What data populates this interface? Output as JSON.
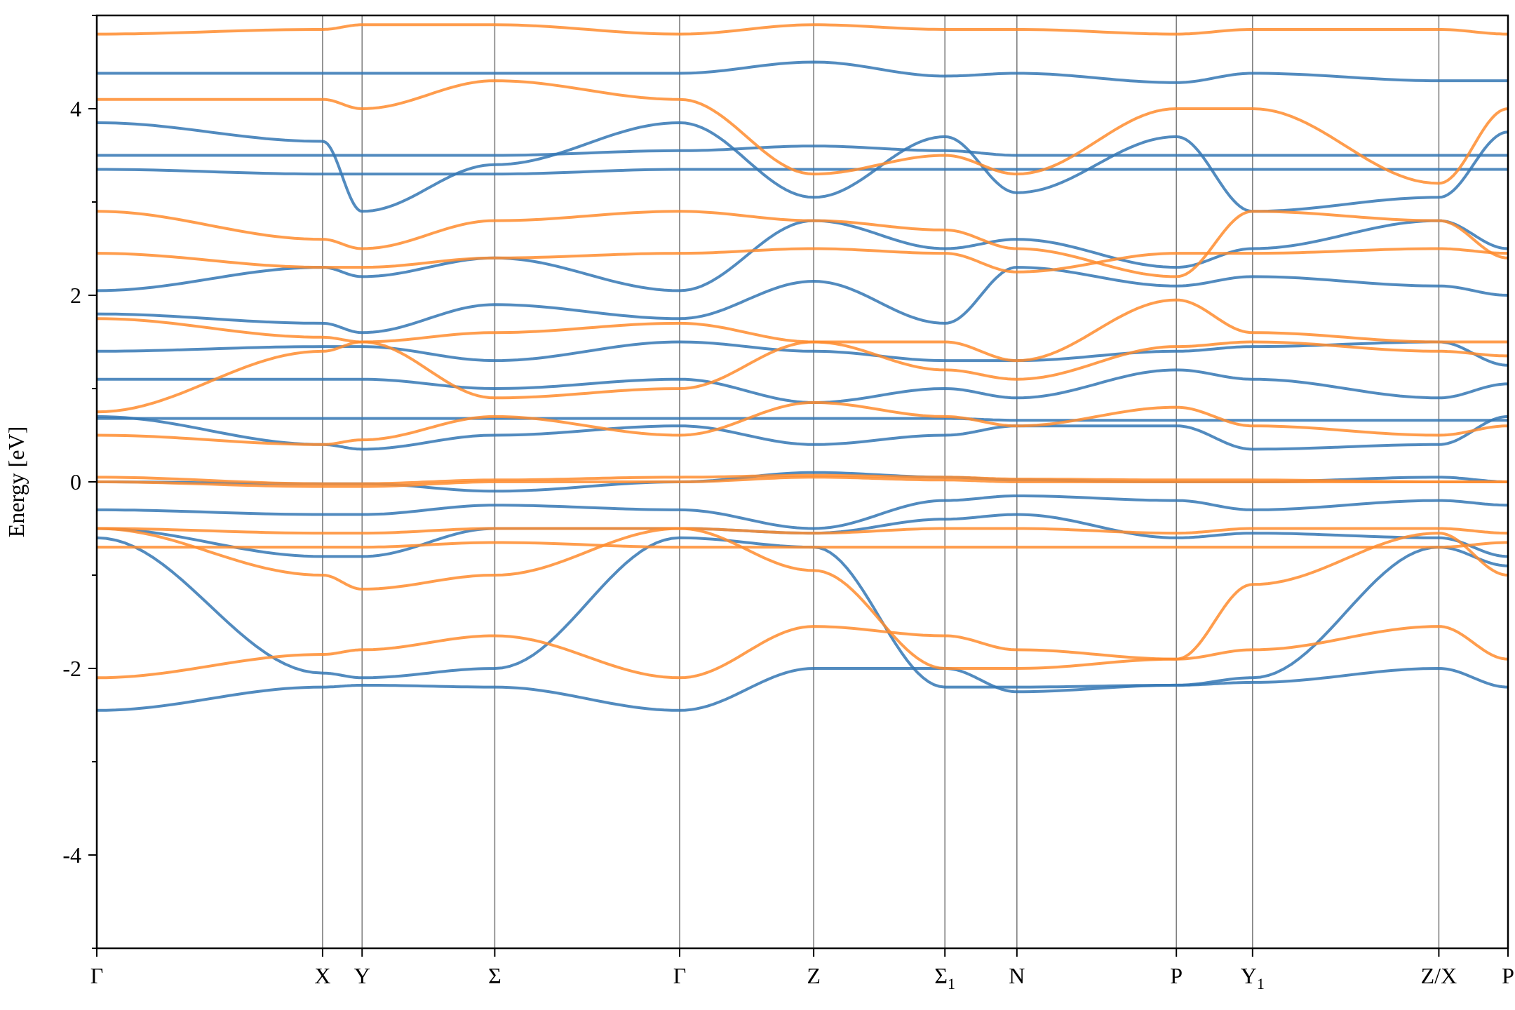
{
  "chart_data": {
    "type": "line",
    "title": "",
    "xlabel": "",
    "ylabel": "Energy [eV]",
    "ylim": [
      -5,
      5
    ],
    "yticks": [
      -4,
      -2,
      0,
      2,
      4
    ],
    "ytick_labels": [
      "-4",
      "-2",
      "0",
      "2",
      "4"
    ],
    "grid": false,
    "legend": "none",
    "kpath": [
      {
        "label": "Γ",
        "sub": "",
        "x": 0.0
      },
      {
        "label": "X",
        "sub": "",
        "x": 0.16
      },
      {
        "label": "Y",
        "sub": "",
        "x": 0.188
      },
      {
        "label": "Σ",
        "sub": "",
        "x": 0.282
      },
      {
        "label": "Γ",
        "sub": "",
        "x": 0.413
      },
      {
        "label": "Z",
        "sub": "",
        "x": 0.508
      },
      {
        "label": "Σ",
        "sub": "1",
        "x": 0.601
      },
      {
        "label": "N",
        "sub": "",
        "x": 0.652
      },
      {
        "label": "P",
        "sub": "",
        "x": 0.765
      },
      {
        "label": "Y",
        "sub": "1",
        "x": 0.819
      },
      {
        "label": "Z/X",
        "sub": "",
        "x": 0.951
      },
      {
        "label": "P",
        "sub": "",
        "x": 1.0
      }
    ],
    "series": [
      {
        "color": "#3477b4",
        "values": [
          [
            -2.45,
            -2.2,
            -2.18,
            -2.2,
            -2.45,
            -2.0,
            -2.0,
            -2.25,
            -2.18,
            -2.15,
            -2.0,
            -2.2
          ],
          [
            -0.6,
            -2.05,
            -2.1,
            -2.0,
            -0.6,
            -0.7,
            -2.2,
            -2.2,
            -2.18,
            -2.1,
            -0.7,
            -0.9
          ],
          [
            -0.5,
            -0.8,
            -0.8,
            -0.5,
            -0.5,
            -0.55,
            -0.4,
            -0.35,
            -0.6,
            -0.55,
            -0.6,
            -0.8
          ],
          [
            -0.3,
            -0.35,
            -0.35,
            -0.25,
            -0.3,
            -0.5,
            -0.2,
            -0.15,
            -0.2,
            -0.3,
            -0.2,
            -0.25
          ],
          [
            0.0,
            -0.02,
            -0.02,
            -0.1,
            0.0,
            0.1,
            0.05,
            0.02,
            0.0,
            0.0,
            0.05,
            0.0
          ],
          [
            0.7,
            0.4,
            0.35,
            0.5,
            0.6,
            0.4,
            0.5,
            0.6,
            0.6,
            0.35,
            0.4,
            0.7
          ],
          [
            0.68,
            0.68,
            0.68,
            0.68,
            0.68,
            0.68,
            0.68,
            0.66,
            0.66,
            0.66,
            0.66,
            0.66
          ],
          [
            1.1,
            1.1,
            1.1,
            1.0,
            1.1,
            0.85,
            1.0,
            0.9,
            1.2,
            1.1,
            0.9,
            1.05
          ],
          [
            1.4,
            1.45,
            1.45,
            1.3,
            1.5,
            1.4,
            1.3,
            1.3,
            1.4,
            1.45,
            1.5,
            1.25
          ],
          [
            1.8,
            1.7,
            1.6,
            1.9,
            1.75,
            2.15,
            1.7,
            2.3,
            2.1,
            2.2,
            2.1,
            2.0
          ],
          [
            2.05,
            2.3,
            2.2,
            2.4,
            2.05,
            2.8,
            2.5,
            2.6,
            2.3,
            2.5,
            2.8,
            2.5
          ],
          [
            3.35,
            3.3,
            3.3,
            3.3,
            3.35,
            3.35,
            3.35,
            3.35,
            3.35,
            3.35,
            3.35,
            3.35
          ],
          [
            3.5,
            3.5,
            3.5,
            3.5,
            3.55,
            3.6,
            3.55,
            3.5,
            3.5,
            3.5,
            3.5,
            3.5
          ],
          [
            3.85,
            3.65,
            2.9,
            3.4,
            3.85,
            3.05,
            3.7,
            3.1,
            3.7,
            2.9,
            3.05,
            3.75
          ],
          [
            4.38,
            4.38,
            4.38,
            4.38,
            4.38,
            4.5,
            4.35,
            4.38,
            4.28,
            4.38,
            4.3,
            4.3
          ]
        ]
      },
      {
        "color": "#ff8c2e",
        "values": [
          [
            -2.1,
            -1.85,
            -1.8,
            -1.65,
            -2.1,
            -1.55,
            -1.65,
            -1.8,
            -1.9,
            -1.8,
            -1.55,
            -1.9
          ],
          [
            -0.5,
            -1.0,
            -1.15,
            -1.0,
            -0.5,
            -0.95,
            -2.0,
            -2.0,
            -1.9,
            -1.1,
            -0.55,
            -1.0
          ],
          [
            -0.7,
            -0.7,
            -0.7,
            -0.65,
            -0.7,
            -0.7,
            -0.7,
            -0.7,
            -0.7,
            -0.7,
            -0.7,
            -0.65
          ],
          [
            -0.5,
            -0.55,
            -0.55,
            -0.5,
            -0.5,
            -0.55,
            -0.5,
            -0.5,
            -0.55,
            -0.5,
            -0.5,
            -0.55
          ],
          [
            0.0,
            -0.05,
            -0.05,
            0.0,
            0.0,
            0.05,
            0.02,
            0.0,
            0.0,
            0.0,
            0.0,
            0.0
          ],
          [
            0.05,
            -0.02,
            -0.02,
            0.02,
            0.05,
            0.07,
            0.05,
            0.03,
            0.02,
            0.02,
            0.0,
            0.0
          ],
          [
            0.5,
            0.4,
            0.45,
            0.7,
            0.5,
            0.85,
            0.7,
            0.6,
            0.8,
            0.6,
            0.5,
            0.6
          ],
          [
            0.75,
            1.4,
            1.5,
            0.9,
            1.0,
            1.5,
            1.2,
            1.1,
            1.45,
            1.5,
            1.4,
            1.35
          ],
          [
            1.75,
            1.55,
            1.5,
            1.6,
            1.7,
            1.5,
            1.5,
            1.3,
            1.95,
            1.6,
            1.5,
            1.5
          ],
          [
            2.45,
            2.3,
            2.3,
            2.4,
            2.45,
            2.5,
            2.45,
            2.25,
            2.45,
            2.45,
            2.5,
            2.45
          ],
          [
            2.9,
            2.6,
            2.5,
            2.8,
            2.9,
            2.8,
            2.7,
            2.5,
            2.2,
            2.9,
            2.8,
            2.4
          ],
          [
            4.1,
            4.1,
            4.0,
            4.3,
            4.1,
            3.3,
            3.5,
            3.3,
            4.0,
            4.0,
            3.2,
            4.0
          ],
          [
            4.8,
            4.85,
            4.9,
            4.9,
            4.8,
            4.9,
            4.85,
            4.85,
            4.8,
            4.85,
            4.85,
            4.8
          ]
        ]
      }
    ]
  }
}
